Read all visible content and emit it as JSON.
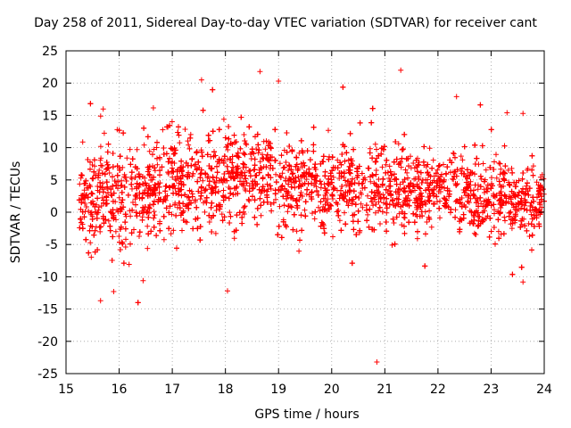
{
  "chart_data": {
    "type": "scatter",
    "title": "Day 258 of 2011, Sidereal Day-to-day VTEC variation (SDTVAR) for receiver cant",
    "xlabel": "GPS time / hours",
    "ylabel": "SDTVAR / TECUs",
    "xlim": [
      15,
      24
    ],
    "ylim": [
      -25,
      25
    ],
    "xticks": [
      15,
      16,
      17,
      18,
      19,
      20,
      21,
      22,
      23,
      24
    ],
    "yticks": [
      -25,
      -20,
      -15,
      -10,
      -5,
      0,
      5,
      10,
      15,
      20,
      25
    ],
    "xtick_labels": [
      "15",
      "16",
      "17",
      "18",
      "19",
      "20",
      "21",
      "22",
      "23",
      "24"
    ],
    "ytick_labels": [
      "-25",
      "-20",
      "-15",
      "-10",
      "-5",
      "0",
      "5",
      "10",
      "15",
      "20",
      "25"
    ],
    "grid": true,
    "marker": "+",
    "color": "#ff0000",
    "series": [
      {
        "name": "SDTVAR",
        "sample_points": [
          {
            "x": 15.65,
            "y": -13.7
          },
          {
            "x": 15.7,
            "y": 16.0
          },
          {
            "x": 16.45,
            "y": -10.6
          },
          {
            "x": 17.55,
            "y": 20.5
          },
          {
            "x": 18.65,
            "y": 21.8
          },
          {
            "x": 19.0,
            "y": 20.3
          },
          {
            "x": 20.85,
            "y": -23.2
          },
          {
            "x": 21.3,
            "y": 22.0
          },
          {
            "x": 22.35,
            "y": 17.9
          },
          {
            "x": 23.3,
            "y": 15.4
          },
          {
            "x": 23.6,
            "y": 15.3
          },
          {
            "x": 23.6,
            "y": -10.8
          }
        ],
        "trend": [
          {
            "x": 15.25,
            "mean": 2.0,
            "spread": 3.5
          },
          {
            "x": 15.5,
            "mean": 2.0,
            "spread": 3.8
          },
          {
            "x": 16.0,
            "mean": 2.5,
            "spread": 3.8
          },
          {
            "x": 16.5,
            "mean": 3.0,
            "spread": 3.8
          },
          {
            "x": 17.0,
            "mean": 4.0,
            "spread": 3.8
          },
          {
            "x": 17.5,
            "mean": 5.0,
            "spread": 3.8
          },
          {
            "x": 18.0,
            "mean": 5.5,
            "spread": 3.6
          },
          {
            "x": 18.5,
            "mean": 5.5,
            "spread": 3.4
          },
          {
            "x": 19.0,
            "mean": 5.0,
            "spread": 3.4
          },
          {
            "x": 19.5,
            "mean": 4.5,
            "spread": 3.3
          },
          {
            "x": 20.0,
            "mean": 4.0,
            "spread": 3.2
          },
          {
            "x": 20.5,
            "mean": 4.0,
            "spread": 3.2
          },
          {
            "x": 21.0,
            "mean": 3.5,
            "spread": 3.2
          },
          {
            "x": 21.5,
            "mean": 4.0,
            "spread": 3.2
          },
          {
            "x": 22.0,
            "mean": 3.5,
            "spread": 3.0
          },
          {
            "x": 22.5,
            "mean": 3.0,
            "spread": 3.0
          },
          {
            "x": 23.0,
            "mean": 2.5,
            "spread": 3.0
          },
          {
            "x": 23.5,
            "mean": 2.0,
            "spread": 3.0
          },
          {
            "x": 24.0,
            "mean": 2.0,
            "spread": 3.0
          }
        ],
        "approx_point_count": 4500
      }
    ]
  }
}
